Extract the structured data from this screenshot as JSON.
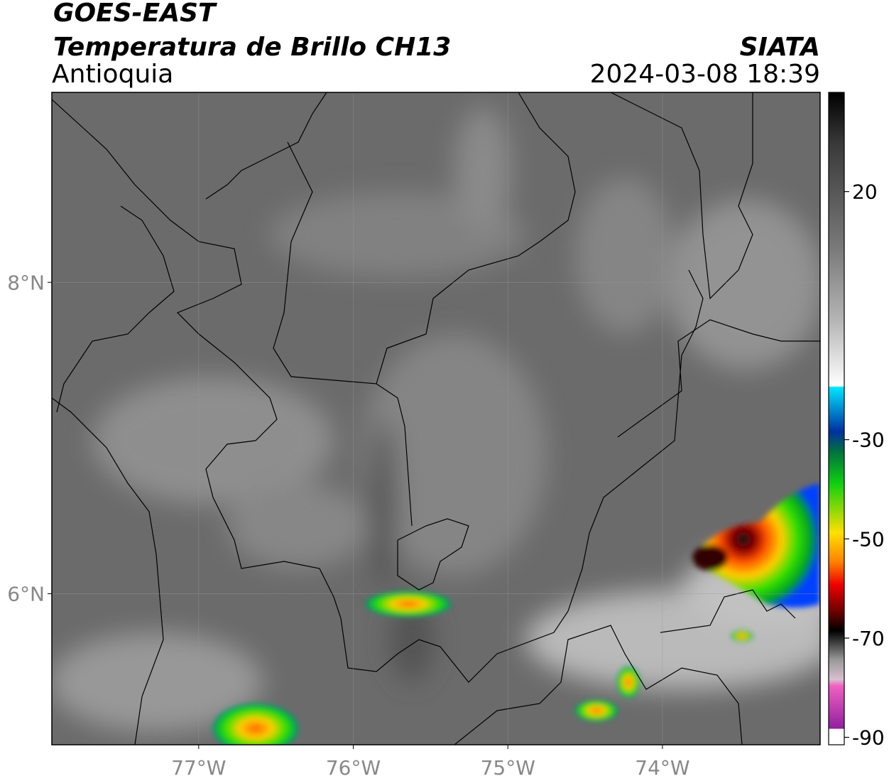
{
  "header": {
    "title": "GOES-EAST",
    "subtitle": "Temperatura de Brillo CH13",
    "region": "Antioquia",
    "source": "SIATA",
    "datetime": "2024-03-08 18:39"
  },
  "map": {
    "xlim": [
      -77.95,
      -72.98
    ],
    "ylim": [
      5.03,
      9.22
    ],
    "xticks": [
      {
        "value": -77,
        "label": "77°W"
      },
      {
        "value": -76,
        "label": "76°W"
      },
      {
        "value": -75,
        "label": "75°W"
      },
      {
        "value": -74,
        "label": "74°W"
      }
    ],
    "yticks": [
      {
        "value": 8,
        "label": "8°N"
      },
      {
        "value": 6,
        "label": "6°N"
      }
    ]
  },
  "colorbar": {
    "lim": [
      -91.5,
      40
    ],
    "ticks": [
      20,
      -30,
      -50,
      -70,
      -90
    ]
  }
}
